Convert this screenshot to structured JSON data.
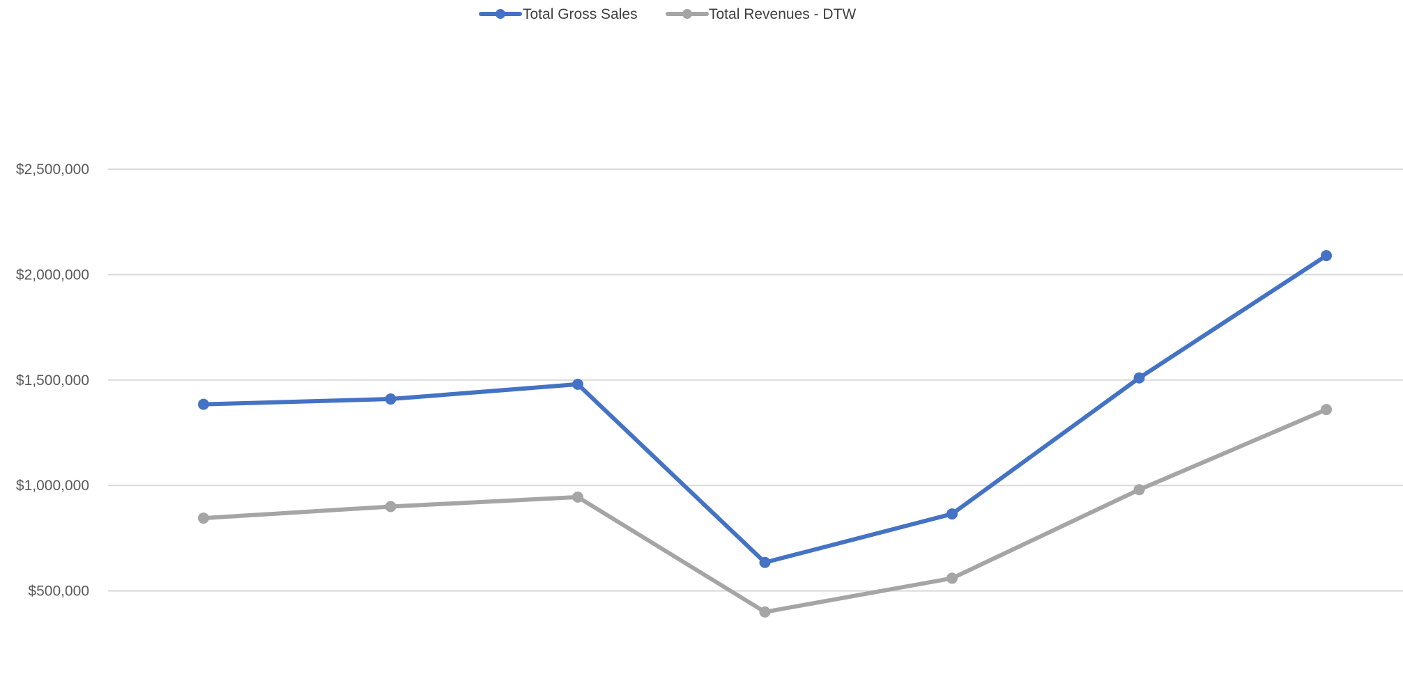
{
  "chart_data": {
    "type": "line",
    "title": "",
    "xlabel": "",
    "ylabel": "",
    "categories": [
      "",
      "",
      "",
      "",
      "",
      "",
      ""
    ],
    "ylim": [
      0,
      2500000
    ],
    "yticks": [
      500000,
      1000000,
      1500000,
      2000000,
      2500000
    ],
    "ytick_labels": [
      "$500,000",
      "$1,000,000",
      "$1,500,000",
      "$2,000,000",
      "$2,500,000"
    ],
    "grid": true,
    "legend_position": "top-center",
    "series": [
      {
        "name": "Total Gross Sales",
        "color": "#4472c4",
        "values": [
          1385000,
          1410000,
          1480000,
          635000,
          865000,
          1510000,
          2090000
        ]
      },
      {
        "name": "Total Revenues - DTW",
        "color": "#a5a5a5",
        "values": [
          845000,
          900000,
          945000,
          400000,
          560000,
          980000,
          1360000
        ]
      }
    ]
  }
}
